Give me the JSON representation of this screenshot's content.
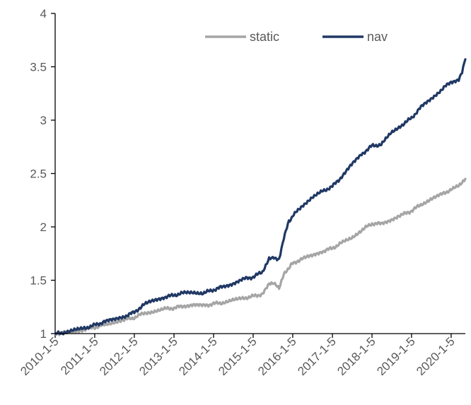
{
  "chart_data": {
    "type": "line",
    "title": "",
    "xlabel": "",
    "ylabel": "",
    "ylim": [
      1,
      4
    ],
    "yticks": [
      "1",
      "1.5",
      "2",
      "2.5",
      "3",
      "3.5",
      "4"
    ],
    "xticks": [
      "2010-1-5",
      "2011-1-5",
      "2012-1-5",
      "2013-1-5",
      "2014-1-5",
      "2015-1-5",
      "2016-1-5",
      "2017-1-5",
      "2018-1-5",
      "2019-1-5",
      "2020-1-5"
    ],
    "xlim": [
      "2010-01-05",
      "2020-05-15"
    ],
    "grid": false,
    "legend_position": "top-center",
    "series": [
      {
        "name": "static",
        "color": "#A5A5A5",
        "points": [
          [
            "2010-01-05",
            1.0
          ],
          [
            "2010-04-01",
            1.01
          ],
          [
            "2010-07-01",
            1.02
          ],
          [
            "2010-10-01",
            1.04
          ],
          [
            "2011-01-05",
            1.06
          ],
          [
            "2011-04-01",
            1.08
          ],
          [
            "2011-07-01",
            1.11
          ],
          [
            "2011-10-01",
            1.13
          ],
          [
            "2012-01-05",
            1.15
          ],
          [
            "2012-04-01",
            1.19
          ],
          [
            "2012-07-01",
            1.21
          ],
          [
            "2012-10-01",
            1.23
          ],
          [
            "2013-01-05",
            1.24
          ],
          [
            "2013-04-01",
            1.26
          ],
          [
            "2013-07-01",
            1.27
          ],
          [
            "2013-10-01",
            1.26
          ],
          [
            "2014-01-05",
            1.28
          ],
          [
            "2014-04-01",
            1.29
          ],
          [
            "2014-07-01",
            1.31
          ],
          [
            "2014-10-01",
            1.33
          ],
          [
            "2015-01-05",
            1.35
          ],
          [
            "2015-04-01",
            1.37
          ],
          [
            "2015-06-01",
            1.46
          ],
          [
            "2015-07-15",
            1.47
          ],
          [
            "2015-09-01",
            1.42
          ],
          [
            "2015-10-15",
            1.55
          ],
          [
            "2015-12-01",
            1.62
          ],
          [
            "2016-01-05",
            1.66
          ],
          [
            "2016-04-01",
            1.7
          ],
          [
            "2016-07-01",
            1.73
          ],
          [
            "2016-10-01",
            1.77
          ],
          [
            "2017-01-05",
            1.8
          ],
          [
            "2017-04-01",
            1.85
          ],
          [
            "2017-07-01",
            1.9
          ],
          [
            "2017-10-01",
            1.97
          ],
          [
            "2018-01-05",
            2.03
          ],
          [
            "2018-04-01",
            2.03
          ],
          [
            "2018-07-01",
            2.07
          ],
          [
            "2018-10-01",
            2.11
          ],
          [
            "2019-01-05",
            2.15
          ],
          [
            "2019-04-01",
            2.21
          ],
          [
            "2019-07-01",
            2.26
          ],
          [
            "2019-10-01",
            2.3
          ],
          [
            "2020-01-05",
            2.35
          ],
          [
            "2020-03-15",
            2.38
          ],
          [
            "2020-04-15",
            2.41
          ],
          [
            "2020-05-15",
            2.45
          ]
        ]
      },
      {
        "name": "nav",
        "color": "#203864",
        "points": [
          [
            "2010-01-05",
            1.0
          ],
          [
            "2010-04-01",
            1.01
          ],
          [
            "2010-07-01",
            1.03
          ],
          [
            "2010-10-01",
            1.05
          ],
          [
            "2011-01-05",
            1.08
          ],
          [
            "2011-04-01",
            1.11
          ],
          [
            "2011-07-01",
            1.13
          ],
          [
            "2011-10-01",
            1.16
          ],
          [
            "2012-01-05",
            1.2
          ],
          [
            "2012-04-01",
            1.27
          ],
          [
            "2012-07-01",
            1.31
          ],
          [
            "2012-10-01",
            1.34
          ],
          [
            "2013-01-05",
            1.36
          ],
          [
            "2013-04-01",
            1.38
          ],
          [
            "2013-07-01",
            1.39
          ],
          [
            "2013-10-01",
            1.38
          ],
          [
            "2014-01-05",
            1.41
          ],
          [
            "2014-04-01",
            1.44
          ],
          [
            "2014-07-01",
            1.47
          ],
          [
            "2014-10-01",
            1.51
          ],
          [
            "2015-01-05",
            1.53
          ],
          [
            "2015-04-01",
            1.58
          ],
          [
            "2015-06-01",
            1.71
          ],
          [
            "2015-07-15",
            1.72
          ],
          [
            "2015-09-01",
            1.69
          ],
          [
            "2015-10-15",
            1.9
          ],
          [
            "2015-12-01",
            2.05
          ],
          [
            "2016-01-05",
            2.1
          ],
          [
            "2016-04-01",
            2.2
          ],
          [
            "2016-07-01",
            2.27
          ],
          [
            "2016-10-01",
            2.33
          ],
          [
            "2017-01-05",
            2.38
          ],
          [
            "2017-04-01",
            2.47
          ],
          [
            "2017-07-01",
            2.58
          ],
          [
            "2017-10-01",
            2.68
          ],
          [
            "2018-01-05",
            2.76
          ],
          [
            "2018-04-01",
            2.77
          ],
          [
            "2018-07-01",
            2.88
          ],
          [
            "2018-10-01",
            2.95
          ],
          [
            "2019-01-05",
            3.02
          ],
          [
            "2019-04-01",
            3.12
          ],
          [
            "2019-07-01",
            3.2
          ],
          [
            "2019-10-01",
            3.28
          ],
          [
            "2020-01-05",
            3.36
          ],
          [
            "2020-03-15",
            3.38
          ],
          [
            "2020-04-15",
            3.45
          ],
          [
            "2020-05-15",
            3.57
          ]
        ]
      }
    ]
  }
}
